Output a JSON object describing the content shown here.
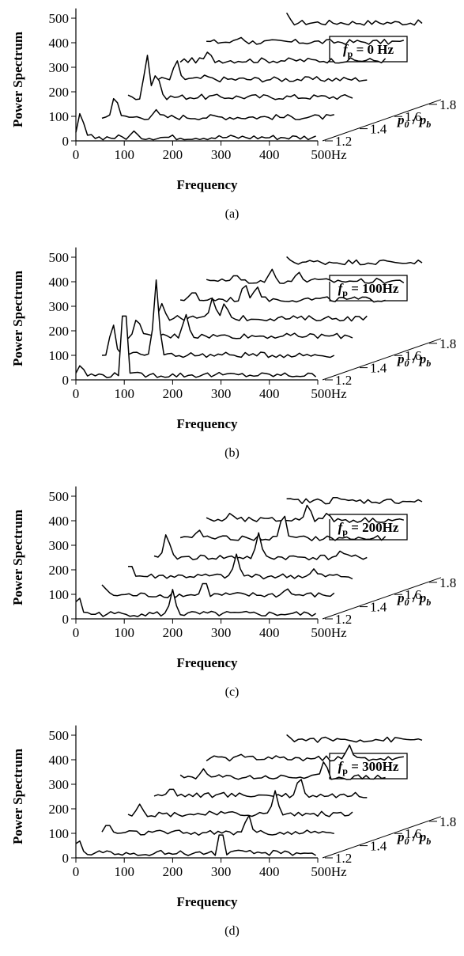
{
  "chart_data": [
    {
      "type": "line",
      "panel_label": "(a)",
      "fp_label": "0 Hz",
      "fp_symbol": "f",
      "fp_subscript": "p",
      "ylabel": "Power Spectrum",
      "xlabel": "Frequency",
      "y_ticks": [
        "0",
        "100",
        "200",
        "300",
        "400",
        "500"
      ],
      "x_ticks": [
        "0",
        "100",
        "200",
        "300",
        "400",
        "500Hz"
      ],
      "z_ticks": [
        "1.2",
        "1.4",
        "1.6",
        "1.8"
      ],
      "zlabel_main": "p",
      "zlabel_sub0": "0",
      "zlabel_slash": " / ",
      "zlabel_sub_b": "b",
      "ylim": [
        0,
        500
      ],
      "xlim": [
        0,
        500
      ],
      "pressure_ratios": [
        1.2,
        1.3,
        1.4,
        1.5,
        1.6,
        1.7,
        1.8
      ],
      "series": [
        {
          "peaks": [
            [
              10,
              130
            ],
            [
              120,
              40
            ]
          ],
          "base": 15
        },
        {
          "peaks": [
            [
              45,
              120
            ],
            [
              130,
              50
            ]
          ],
          "base": 20
        },
        {
          "peaks": [
            [
              75,
              210
            ],
            [
              95,
              140
            ]
          ],
          "base": 25
        },
        {
          "peaks": [
            [
              100,
              110
            ],
            [
              160,
              40
            ]
          ],
          "base": 20
        },
        {
          "peaks": [
            [
              130,
              60
            ]
          ],
          "base": 20
        },
        {
          "peaks": [
            [
              160,
              40
            ]
          ],
          "base": 18
        },
        {
          "peaks": [
            [
              220,
              60
            ]
          ],
          "base": 20
        }
      ]
    },
    {
      "type": "line",
      "panel_label": "(b)",
      "fp_label": "100Hz",
      "fp_symbol": "f",
      "fp_subscript": "p",
      "ylabel": "Power Spectrum",
      "xlabel": "Frequency",
      "y_ticks": [
        "0",
        "100",
        "200",
        "300",
        "400",
        "500"
      ],
      "x_ticks": [
        "0",
        "100",
        "200",
        "300",
        "400",
        "500Hz"
      ],
      "z_ticks": [
        "1.2",
        "1.4",
        "1.6",
        "1.8"
      ],
      "zlabel_main": "p",
      "zlabel_sub0": "0",
      "zlabel_slash": " / ",
      "zlabel_sub_b": "b",
      "ylim": [
        0,
        500
      ],
      "xlim": [
        0,
        500
      ],
      "pressure_ratios": [
        1.2,
        1.3,
        1.4,
        1.5,
        1.6,
        1.7,
        1.8
      ],
      "series": [
        {
          "peaks": [
            [
              10,
              65
            ],
            [
              100,
              380
            ]
          ],
          "base": 20
        },
        {
          "peaks": [
            [
              40,
              170
            ],
            [
              130,
              330
            ]
          ],
          "base": 25
        },
        {
          "peaks": [
            [
              55,
              110
            ],
            [
              155,
              120
            ]
          ],
          "base": 25
        },
        {
          "peaks": [
            [
              70,
              80
            ],
            [
              175,
              110
            ],
            [
              200,
              90
            ]
          ],
          "base": 20
        },
        {
          "peaks": [
            [
              100,
              60
            ],
            [
              205,
              95
            ],
            [
              230,
              80
            ]
          ],
          "base": 20
        },
        {
          "peaks": [
            [
              150,
              50
            ],
            [
              225,
              70
            ],
            [
              280,
              60
            ]
          ],
          "base": 18
        },
        {
          "peaks": [
            [
              220,
              40
            ]
          ],
          "base": 18
        }
      ]
    },
    {
      "type": "line",
      "panel_label": "(c)",
      "fp_label": "200Hz",
      "fp_symbol": "f",
      "fp_subscript": "p",
      "ylabel": "Power Spectrum",
      "xlabel": "Frequency",
      "y_ticks": [
        "0",
        "100",
        "200",
        "300",
        "400",
        "500"
      ],
      "x_ticks": [
        "0",
        "100",
        "200",
        "300",
        "400",
        "500Hz"
      ],
      "z_ticks": [
        "1.2",
        "1.4",
        "1.6",
        "1.8"
      ],
      "zlabel_main": "p",
      "zlabel_sub0": "0",
      "zlabel_slash": " / ",
      "zlabel_sub_b": "b",
      "ylim": [
        0,
        500
      ],
      "xlim": [
        0,
        500
      ],
      "pressure_ratios": [
        1.2,
        1.3,
        1.4,
        1.5,
        1.6,
        1.7,
        1.8
      ],
      "series": [
        {
          "peaks": [
            [
              5,
              105
            ],
            [
              200,
              120
            ]
          ],
          "base": 20
        },
        {
          "peaks": [
            [
              20,
              70
            ],
            [
              230,
              90
            ],
            [
              400,
              50
            ]
          ],
          "base": 20
        },
        {
          "peaks": [
            [
              40,
              80
            ],
            [
              260,
              110
            ],
            [
              420,
              50
            ]
          ],
          "base": 20
        },
        {
          "peaks": [
            [
              80,
              130
            ],
            [
              270,
              120
            ],
            [
              440,
              50
            ]
          ],
          "base": 20
        },
        {
          "peaks": [
            [
              110,
              60
            ],
            [
              285,
              140
            ]
          ],
          "base": 20
        },
        {
          "peaks": [
            [
              140,
              50
            ],
            [
              300,
              90
            ],
            [
              340,
              50
            ]
          ],
          "base": 18
        },
        {
          "peaks": [
            [
              230,
              30
            ],
            [
              320,
              40
            ]
          ],
          "base": 18
        }
      ]
    },
    {
      "type": "line",
      "panel_label": "(d)",
      "fp_label": "300Hz",
      "fp_symbol": "f",
      "fp_subscript": "p",
      "ylabel": "Power Spectrum",
      "xlabel": "Frequency",
      "y_ticks": [
        "0",
        "100",
        "200",
        "300",
        "400",
        "500"
      ],
      "x_ticks": [
        "0",
        "100",
        "200",
        "300",
        "400",
        "500Hz"
      ],
      "z_ticks": [
        "1.2",
        "1.4",
        "1.6",
        "1.8"
      ],
      "zlabel_main": "p",
      "zlabel_sub0": "0",
      "zlabel_slash": " / ",
      "zlabel_sub_b": "b",
      "ylim": [
        0,
        500
      ],
      "xlim": [
        0,
        500
      ],
      "pressure_ratios": [
        1.2,
        1.3,
        1.4,
        1.5,
        1.6,
        1.7,
        1.8
      ],
      "series": [
        {
          "peaks": [
            [
              5,
              85
            ],
            [
              300,
              130
            ]
          ],
          "base": 20
        },
        {
          "peaks": [
            [
              30,
              70
            ],
            [
              320,
              110
            ]
          ],
          "base": 25
        },
        {
          "peaks": [
            [
              60,
              65
            ],
            [
              340,
              120
            ]
          ],
          "base": 25
        },
        {
          "peaks": [
            [
              90,
              60
            ],
            [
              355,
              110
            ]
          ],
          "base": 25
        },
        {
          "peaks": [
            [
              120,
              55
            ],
            [
              370,
              95
            ]
          ],
          "base": 22
        },
        {
          "peaks": [
            [
              160,
              40
            ],
            [
              385,
              80
            ]
          ],
          "base": 20
        },
        {
          "peaks": [
            [
              220,
              40
            ]
          ],
          "base": 20
        }
      ]
    }
  ]
}
